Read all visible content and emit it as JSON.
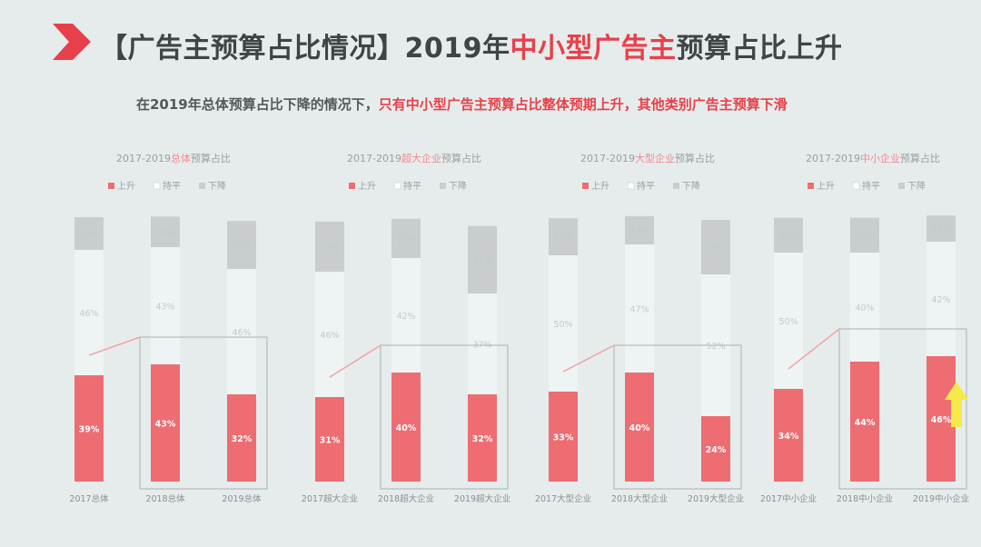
{
  "title": {
    "part1": "【广告主预算占比情况】2019年",
    "highlight": "中小型广告主",
    "part2": "预算占比上升"
  },
  "subtitle": {
    "part1": "在2019年总体预算占比下降的情况下，",
    "highlight": "只有中小型广告主预算占比整体预期上升，其他类别广告主预算下滑"
  },
  "colors": {
    "up": "#ee6d72",
    "flat": "#ffffff",
    "down": "#c9cdcf",
    "accent": "#e8404a",
    "arrow": "#f4ea4a"
  },
  "chart_data": [
    {
      "type": "bar",
      "title_prefix": "2017-2019",
      "title_highlight": "总体",
      "title_suffix": "预算占比",
      "legend": [
        "上升",
        "持平",
        "下降"
      ],
      "categories": [
        "2017总体",
        "2018总体",
        "2019总体"
      ],
      "series": [
        {
          "name": "上升",
          "values": [
            39,
            43,
            32
          ]
        },
        {
          "name": "持平",
          "values": [
            46,
            43,
            46
          ]
        },
        {
          "name": "下降",
          "values": [
            15,
            14,
            22
          ]
        }
      ],
      "ylim": [
        0,
        100
      ]
    },
    {
      "type": "bar",
      "title_prefix": "2017-2019",
      "title_highlight": "超大企业",
      "title_suffix": "预算占比",
      "legend": [
        "上升",
        "持平",
        "下降"
      ],
      "categories": [
        "2017超大企业",
        "2018超大企业",
        "2019超大企业"
      ],
      "series": [
        {
          "name": "上升",
          "values": [
            31,
            40,
            32
          ]
        },
        {
          "name": "持平",
          "values": [
            46,
            42,
            37
          ]
        },
        {
          "name": "下降",
          "values": [
            23,
            18,
            31
          ]
        }
      ],
      "ylim": [
        0,
        100
      ]
    },
    {
      "type": "bar",
      "title_prefix": "2017-2019",
      "title_highlight": "大型企业",
      "title_suffix": "预算占比",
      "legend": [
        "上升",
        "持平",
        "下降"
      ],
      "categories": [
        "2017大型企业",
        "2018大型企业",
        "2019大型企业"
      ],
      "series": [
        {
          "name": "上升",
          "values": [
            33,
            40,
            24
          ]
        },
        {
          "name": "持平",
          "values": [
            50,
            47,
            52
          ]
        },
        {
          "name": "下降",
          "values": [
            17,
            13,
            25
          ]
        }
      ],
      "ylim": [
        0,
        100
      ]
    },
    {
      "type": "bar",
      "title_prefix": "2017-2019",
      "title_highlight": "中小企业",
      "title_suffix": "预算占比",
      "legend": [
        "上升",
        "持平",
        "下降"
      ],
      "categories": [
        "2017中小企业",
        "2018中小企业",
        "2019中小企业"
      ],
      "series": [
        {
          "name": "上升",
          "values": [
            34,
            44,
            46
          ]
        },
        {
          "name": "持平",
          "values": [
            50,
            40,
            42
          ]
        },
        {
          "name": "下降",
          "values": [
            16,
            16,
            12
          ]
        }
      ],
      "ylim": [
        0,
        100
      ]
    }
  ]
}
